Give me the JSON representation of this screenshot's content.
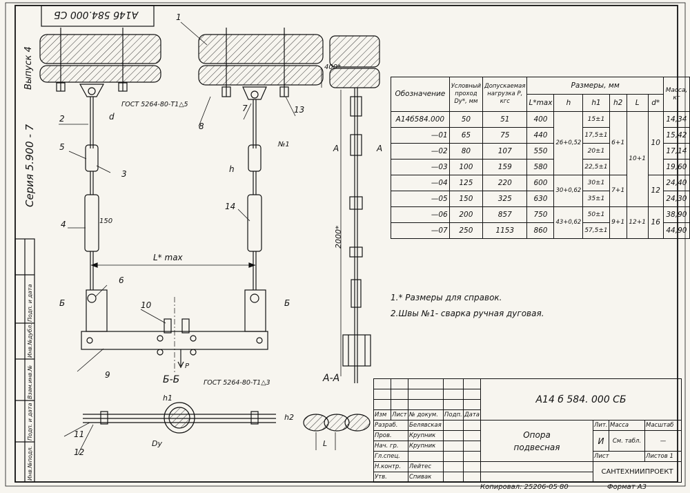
{
  "sheet": {
    "top_stamp": "А14б 584.000 СБ",
    "side_vypusk": "Выпуск 4",
    "side_series": "Серия 5.900 - 7",
    "left_columns": [
      "Инв.№подл.",
      "Подп. и дата",
      "Взам.инв.№",
      "Инв.№дубл.",
      "Подп. и дата"
    ],
    "copied": "Копировал: 25206-05  80",
    "format": "Формат А3"
  },
  "drawing": {
    "leaders": [
      "1",
      "2",
      "3",
      "4",
      "5",
      "6",
      "7",
      "8",
      "9",
      "10",
      "11",
      "12",
      "13",
      "14"
    ],
    "weld_note_1": "ГОСТ 5264-80-Т1△5",
    "weld_note_2": "ГОСТ 5264-80-Т1△3",
    "dim_d": "d",
    "dim_h": "h",
    "dim_h1": "h1",
    "dim_h2": "h2",
    "dim_L": "L",
    "dim_150": "150",
    "dim_400": "400*",
    "dim_2000": "2000*",
    "dim_Lmax": "L* max",
    "dim_Dy": "Dу",
    "weld_no1": "№1",
    "section_A": "А",
    "section_B": "Б",
    "view_AA": "А-А",
    "view_BB": "Б-Б",
    "load_P": "Р"
  },
  "spec_table": {
    "h_designation": "Обозначение",
    "h_dn": "Условный проход Dу*, мм",
    "h_load": "Допускаемая нагрузка Р, кгс",
    "h_dims": "Размеры, мм",
    "h_mass": "Масса, кг",
    "sub_Lmax": "L*max",
    "sub_h": "h",
    "sub_h1": "h1",
    "sub_h2": "h2",
    "sub_L": "L",
    "sub_d": "d*",
    "rows": [
      {
        "des": "А14б584.000",
        "dn": "50",
        "p": "51",
        "lmax": "400",
        "h1": "15±1",
        "mass": "14,34"
      },
      {
        "des": "—01",
        "dn": "65",
        "p": "75",
        "lmax": "440",
        "h1": "17,5±1",
        "mass": "15,42"
      },
      {
        "des": "—02",
        "dn": "80",
        "p": "107",
        "lmax": "550",
        "h1": "20±1",
        "mass": "17,14"
      },
      {
        "des": "—03",
        "dn": "100",
        "p": "159",
        "lmax": "580",
        "h1": "22,5±1",
        "mass": "19,60"
      },
      {
        "des": "—04",
        "dn": "125",
        "p": "220",
        "lmax": "600",
        "h1": "30±1",
        "mass": "24,40"
      },
      {
        "des": "—05",
        "dn": "150",
        "p": "325",
        "lmax": "630",
        "h1": "35±1",
        "mass": "24,30"
      },
      {
        "des": "—06",
        "dn": "200",
        "p": "857",
        "lmax": "750",
        "h1": "50±1",
        "mass": "38,90"
      },
      {
        "des": "—07",
        "dn": "250",
        "p": "1153",
        "lmax": "860",
        "h1": "57,5±1",
        "mass": "44,90"
      }
    ],
    "merged": {
      "h_a": "26+0,52",
      "h_b": "30+0,62",
      "h_c": "43+0,62",
      "h2_a": "6+1",
      "h2_b": "7+1",
      "h2_c": "9+1",
      "L_a": "10+1",
      "L_b": "12+1",
      "d_a": "10",
      "d_b": "12",
      "d_c": "16"
    }
  },
  "notes": [
    "1.* Размеры для справок.",
    "2.Швы №1- сварка ручная дуговая."
  ],
  "title_block": {
    "designation": "А14 б 584. 000 СБ",
    "name_line1": "Опора",
    "name_line2": "подвесная",
    "hdr_cols": [
      "Изм",
      "Лист",
      "№ докум.",
      "Подп.",
      "Дата"
    ],
    "roles": [
      {
        "role": "Разраб.",
        "name": "Белявская"
      },
      {
        "role": "Пров.",
        "name": "Крупник"
      },
      {
        "role": "Нач. гр.",
        "name": "Крупник"
      },
      {
        "role": "Гл.спец.",
        "name": ""
      },
      {
        "role": "Н.контр.",
        "name": "Лейтес"
      },
      {
        "role": "Утв.",
        "name": "Спивак"
      }
    ],
    "lit_label": "Лит.",
    "mass_label": "Масса",
    "scale_label": "Масштаб",
    "lit_value": "И",
    "mass_value": "См. табл.",
    "scale_value": "—",
    "sheet_label": "Лист",
    "sheets_label": "Листов 1",
    "org": "САНТЕХНИИПРОЕКТ"
  }
}
